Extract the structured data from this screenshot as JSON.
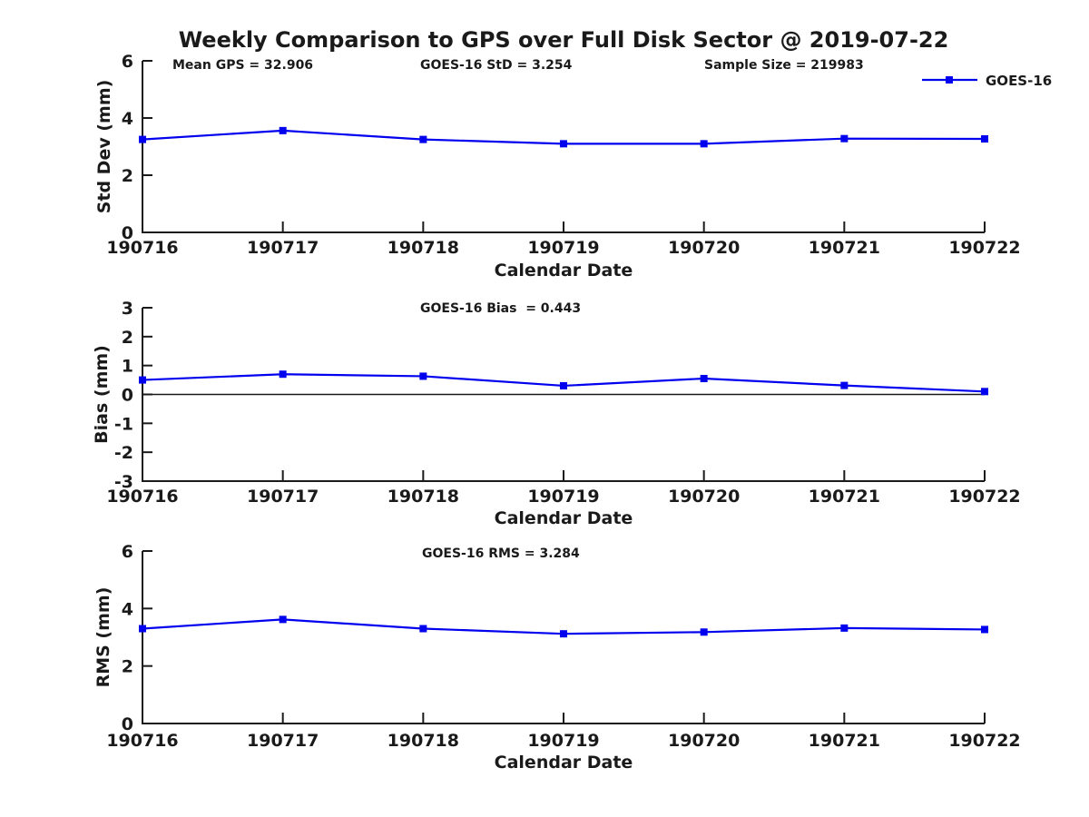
{
  "title": "Weekly Comparison to GPS over Full Disk Sector @ 2019-07-22",
  "legend": {
    "label": "GOES-16",
    "position": "top-right"
  },
  "colors": {
    "series": "#0000ee",
    "axis": "#1a1a1a",
    "text": "#1a1a1a",
    "background": "#ffffff"
  },
  "chart_data": [
    {
      "type": "line",
      "subplot": "std-dev",
      "ylabel": "Std Dev (mm)",
      "xlabel": "Calendar Date",
      "categories": [
        "190716",
        "190717",
        "190718",
        "190719",
        "190720",
        "190721",
        "190722"
      ],
      "series": [
        {
          "name": "GOES-16",
          "values": [
            3.25,
            3.56,
            3.25,
            3.1,
            3.1,
            3.28,
            3.27
          ]
        }
      ],
      "ylim": [
        0,
        6
      ],
      "yticks": [
        0,
        2,
        4,
        6
      ],
      "grid": false,
      "zero_line": false,
      "annotations": [
        "Mean GPS = 32.906",
        "GOES-16 StD = 3.254",
        "Sample Size = 219983"
      ]
    },
    {
      "type": "line",
      "subplot": "bias",
      "ylabel": "Bias (mm)",
      "xlabel": "Calendar Date",
      "categories": [
        "190716",
        "190717",
        "190718",
        "190719",
        "190720",
        "190721",
        "190722"
      ],
      "series": [
        {
          "name": "GOES-16",
          "values": [
            0.5,
            0.7,
            0.63,
            0.3,
            0.55,
            0.31,
            0.1
          ]
        }
      ],
      "ylim": [
        -3,
        3
      ],
      "yticks": [
        3,
        2,
        1,
        0,
        -1,
        -2,
        -3
      ],
      "grid": false,
      "zero_line": true,
      "annotations": [
        "GOES-16 Bias  = 0.443"
      ]
    },
    {
      "type": "line",
      "subplot": "rms",
      "ylabel": "RMS (mm)",
      "xlabel": "Calendar Date",
      "categories": [
        "190716",
        "190717",
        "190718",
        "190719",
        "190720",
        "190721",
        "190722"
      ],
      "series": [
        {
          "name": "GOES-16",
          "values": [
            3.3,
            3.62,
            3.3,
            3.12,
            3.18,
            3.32,
            3.27
          ]
        }
      ],
      "ylim": [
        0,
        6
      ],
      "yticks": [
        0,
        2,
        4,
        6
      ],
      "grid": false,
      "zero_line": false,
      "annotations": [
        "GOES-16 RMS = 3.284"
      ]
    }
  ]
}
